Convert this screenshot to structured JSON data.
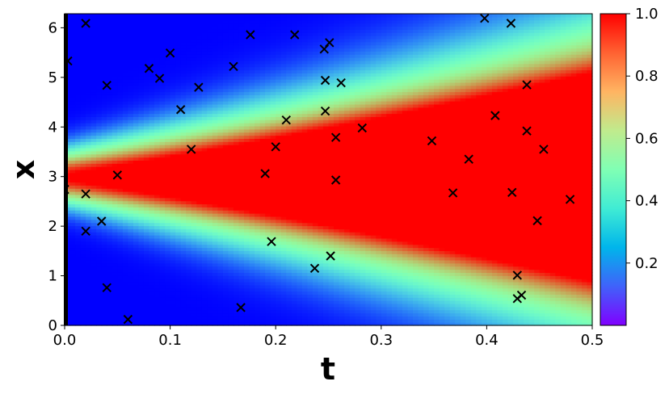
{
  "chart_data": {
    "type": "heatmap",
    "title": "",
    "xlabel": "t",
    "ylabel": "x",
    "xlim": [
      0.0,
      0.5
    ],
    "ylim": [
      0.0,
      6.283
    ],
    "x_ticks": [
      "0.0",
      "0.1",
      "0.2",
      "0.3",
      "0.4",
      "0.5"
    ],
    "x_tick_values": [
      0.0,
      0.1,
      0.2,
      0.3,
      0.4,
      0.5
    ],
    "y_ticks": [
      "0",
      "1",
      "2",
      "3",
      "4",
      "5",
      "6"
    ],
    "y_tick_values": [
      0,
      1,
      2,
      3,
      4,
      5,
      6
    ],
    "colormap": "rainbow",
    "colorbar": {
      "range": [
        0.0,
        1.0
      ],
      "ticks": [
        "0.2",
        "0.4",
        "0.6",
        "0.8",
        "1.0"
      ],
      "tick_values": [
        0.2,
        0.4,
        0.6,
        0.8,
        1.0
      ]
    },
    "field": {
      "peak_x": 3.0,
      "initial_width": 0.55,
      "width_growth_per_t": 3.8,
      "initial_boundary_value": 0.0
    },
    "markers": {
      "symbol": "x",
      "color": "#000000",
      "points": [
        [
          0.003,
          5.33
        ],
        [
          0.02,
          6.09
        ],
        [
          0.0,
          2.74
        ],
        [
          0.02,
          2.65
        ],
        [
          0.02,
          1.9
        ],
        [
          0.035,
          2.1
        ],
        [
          0.04,
          4.84
        ],
        [
          0.04,
          0.76
        ],
        [
          0.05,
          3.03
        ],
        [
          0.06,
          0.12
        ],
        [
          0.08,
          5.18
        ],
        [
          0.09,
          4.98
        ],
        [
          0.1,
          5.49
        ],
        [
          0.11,
          4.35
        ],
        [
          0.12,
          3.55
        ],
        [
          0.127,
          4.8
        ],
        [
          0.16,
          5.22
        ],
        [
          0.167,
          0.36
        ],
        [
          0.176,
          5.86
        ],
        [
          0.19,
          3.06
        ],
        [
          0.196,
          1.69
        ],
        [
          0.2,
          3.6
        ],
        [
          0.21,
          4.14
        ],
        [
          0.218,
          5.86
        ],
        [
          0.237,
          1.15
        ],
        [
          0.246,
          5.57
        ],
        [
          0.247,
          4.94
        ],
        [
          0.247,
          4.32
        ],
        [
          0.251,
          5.7
        ],
        [
          0.252,
          1.4
        ],
        [
          0.257,
          3.79
        ],
        [
          0.257,
          2.93
        ],
        [
          0.262,
          4.89
        ],
        [
          0.282,
          3.98
        ],
        [
          0.348,
          3.72
        ],
        [
          0.368,
          2.67
        ],
        [
          0.383,
          3.35
        ],
        [
          0.398,
          6.19
        ],
        [
          0.408,
          4.23
        ],
        [
          0.423,
          6.09
        ],
        [
          0.424,
          2.68
        ],
        [
          0.429,
          1.01
        ],
        [
          0.429,
          0.54
        ],
        [
          0.433,
          0.61
        ],
        [
          0.438,
          4.85
        ],
        [
          0.438,
          3.92
        ],
        [
          0.448,
          2.11
        ],
        [
          0.454,
          3.55
        ],
        [
          0.479,
          2.54
        ]
      ]
    }
  }
}
